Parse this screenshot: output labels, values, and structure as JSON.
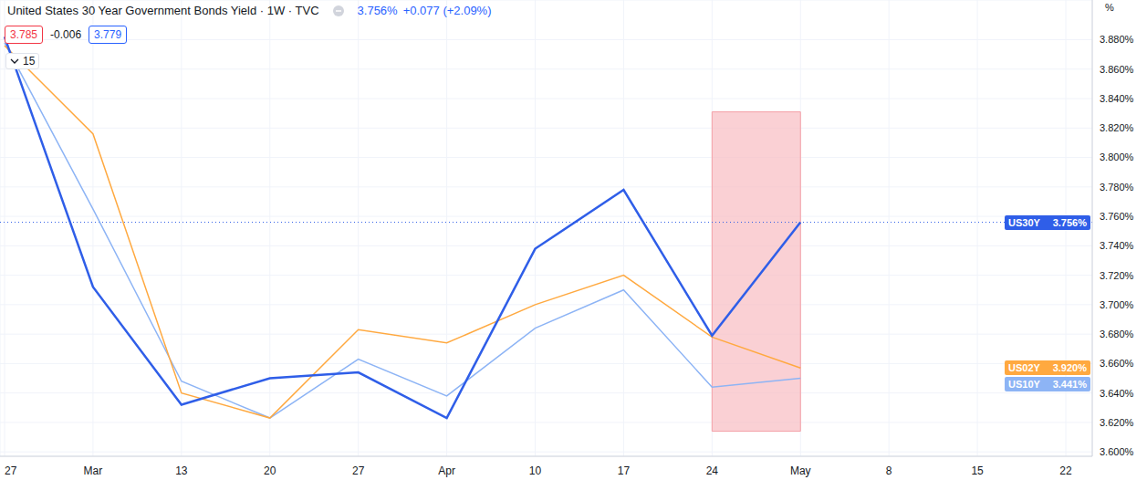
{
  "chart_data": {
    "type": "line",
    "title": "United States 30 Year Government Bonds Yield · 1W · TVC",
    "header": {
      "price": "3.756%",
      "change": "+0.077 (+2.09%)",
      "bid": "3.785",
      "spread": "-0.006",
      "ask": "3.779",
      "indicator": "15"
    },
    "ylabel": "%",
    "categories": [
      "27",
      "Mar",
      "13",
      "20",
      "27",
      "Apr",
      "10",
      "17",
      "24",
      "May",
      "8",
      "15",
      "22"
    ],
    "series": [
      {
        "name": "US30Y",
        "color": "#2f5ee8",
        "last_label": "3.756%",
        "values": [
          3.882,
          3.712,
          3.632,
          3.65,
          3.654,
          3.623,
          3.738,
          3.778,
          3.679,
          3.756,
          null,
          null,
          null
        ]
      },
      {
        "name": "US02Y",
        "color": "#ffa940",
        "last_label": "3.920%",
        "values": [
          3.876,
          3.816,
          3.64,
          3.623,
          3.683,
          3.674,
          3.7,
          3.72,
          3.678,
          3.657,
          null,
          null,
          null
        ]
      },
      {
        "name": "US10Y",
        "color": "#8db4f5",
        "last_label": "3.441%",
        "values": [
          3.878,
          3.765,
          3.648,
          3.623,
          3.663,
          3.638,
          3.684,
          3.71,
          3.644,
          3.65,
          null,
          null,
          null
        ]
      }
    ],
    "ylim": [
      3.597,
      3.907
    ],
    "yticks": [
      {
        "value": 3.6,
        "label": "3.600%"
      },
      {
        "value": 3.62,
        "label": "3.620%"
      },
      {
        "value": 3.64,
        "label": "3.640%"
      },
      {
        "value": 3.66,
        "label": "3.660%"
      },
      {
        "value": 3.68,
        "label": "3.680%"
      },
      {
        "value": 3.7,
        "label": "3.700%"
      },
      {
        "value": 3.72,
        "label": "3.720%"
      },
      {
        "value": 3.74,
        "label": "3.740%"
      },
      {
        "value": 3.76,
        "label": "3.760%"
      },
      {
        "value": 3.78,
        "label": "3.780%"
      },
      {
        "value": 3.8,
        "label": "3.800%"
      },
      {
        "value": 3.82,
        "label": "3.820%"
      },
      {
        "value": 3.84,
        "label": "3.840%"
      },
      {
        "value": 3.86,
        "label": "3.860%"
      },
      {
        "value": 3.88,
        "label": "3.880%"
      }
    ],
    "grid": true,
    "highlight": {
      "from": "24",
      "to": "May",
      "ylim": [
        3.614,
        3.831
      ]
    }
  }
}
